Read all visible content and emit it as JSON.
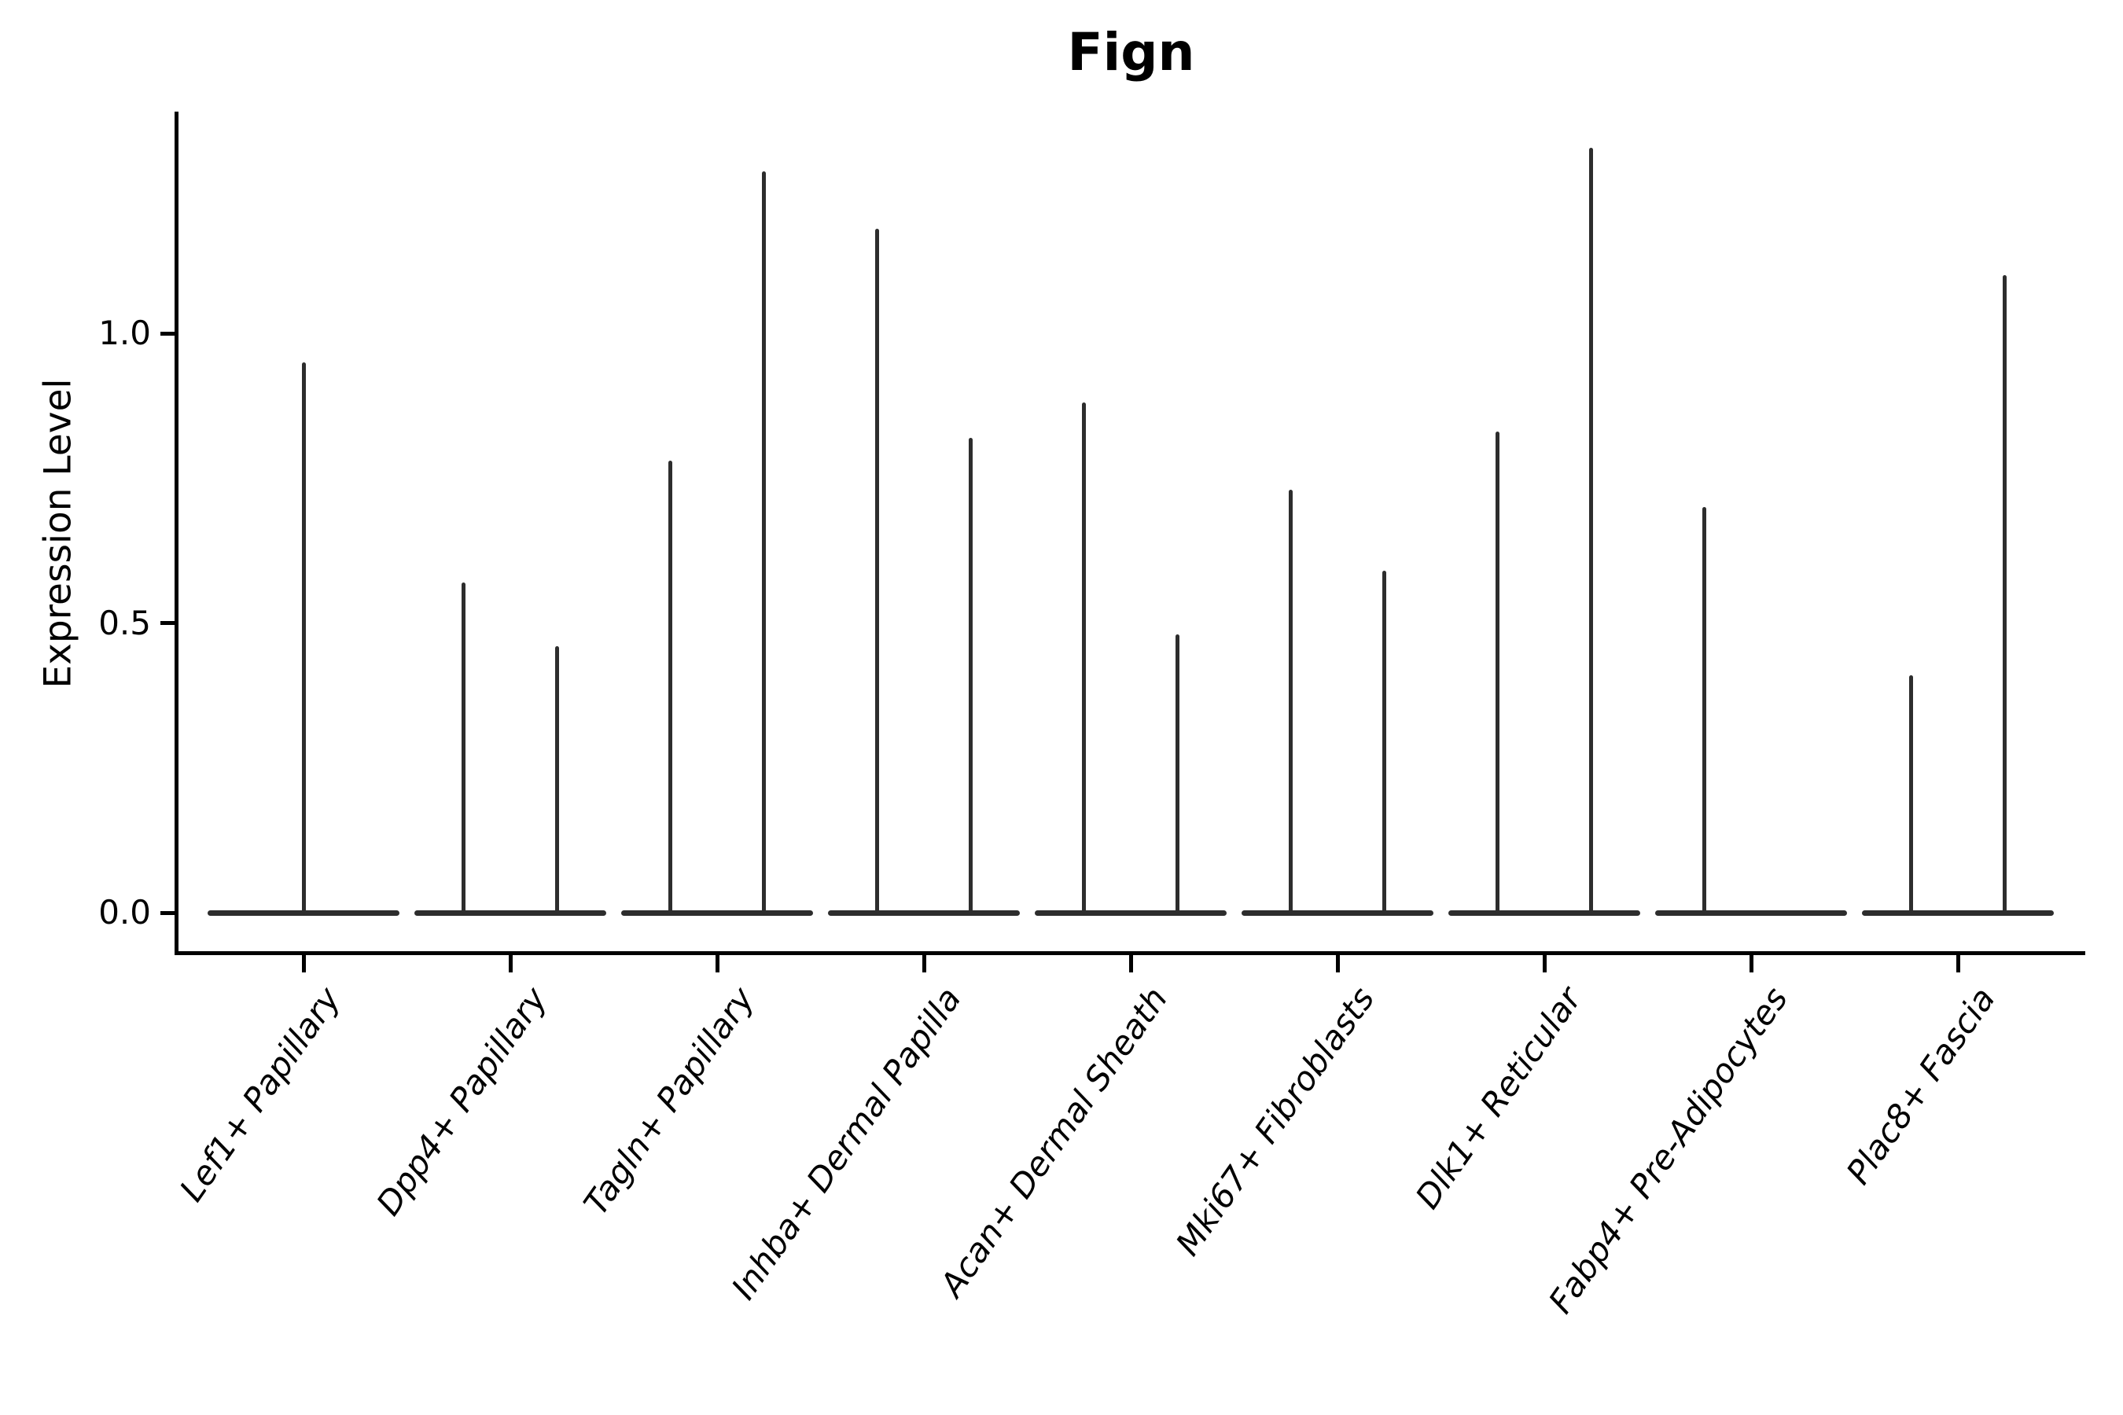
{
  "chart_data": {
    "type": "violin",
    "title": "Fign",
    "xlabel": "",
    "ylabel": "Expression Level",
    "yticks": [
      0.0,
      0.5,
      1.0
    ],
    "ylim": [
      -0.07,
      1.39
    ],
    "grid": false,
    "legend": "none",
    "violin_color": "#2d2d2d",
    "axis_color": "#000000",
    "categories": [
      "Lef1+ Papillary",
      "Dpp4+ Papillary",
      "Tagln+ Papillary",
      "Inhba+ Dermal Papilla",
      "Acan+ Dermal Sheath",
      "Mki67+ Fibroblasts",
      "Dlk1+ Reticular",
      "Fabp4+ Pre-Adipocytes",
      "Plac8+ Fascia"
    ],
    "violins": [
      {
        "category": "Lef1+ Papillary",
        "spikes": [
          {
            "offset": 0.0,
            "max": 0.95
          }
        ]
      },
      {
        "category": "Dpp4+ Papillary",
        "spikes": [
          {
            "offset": -0.225,
            "max": 0.57
          },
          {
            "offset": 0.225,
            "max": 0.46
          }
        ]
      },
      {
        "category": "Tagln+ Papillary",
        "spikes": [
          {
            "offset": -0.225,
            "max": 0.78
          },
          {
            "offset": 0.225,
            "max": 1.28
          }
        ]
      },
      {
        "category": "Inhba+ Dermal Papilla",
        "spikes": [
          {
            "offset": -0.225,
            "max": 1.18
          },
          {
            "offset": 0.225,
            "max": 0.82
          }
        ]
      },
      {
        "category": "Acan+ Dermal Sheath",
        "spikes": [
          {
            "offset": -0.225,
            "max": 0.88
          },
          {
            "offset": 0.225,
            "max": 0.48
          }
        ]
      },
      {
        "category": "Mki67+ Fibroblasts",
        "spikes": [
          {
            "offset": -0.225,
            "max": 0.73
          },
          {
            "offset": 0.225,
            "max": 0.59
          }
        ]
      },
      {
        "category": "Dlk1+ Reticular",
        "spikes": [
          {
            "offset": -0.225,
            "max": 0.83
          },
          {
            "offset": 0.225,
            "max": 1.32
          }
        ]
      },
      {
        "category": "Fabp4+ Pre-Adipocytes",
        "spikes": [
          {
            "offset": -0.225,
            "max": 0.7
          }
        ]
      },
      {
        "category": "Plac8+ Fascia",
        "spikes": [
          {
            "offset": -0.225,
            "max": 0.41
          },
          {
            "offset": 0.225,
            "max": 1.1
          }
        ]
      }
    ]
  }
}
